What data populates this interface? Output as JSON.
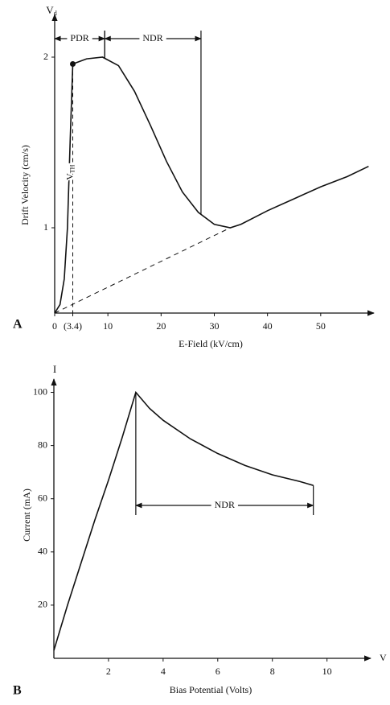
{
  "chart_data": [
    {
      "type": "line",
      "panel_label": "A",
      "x_label": "E-Field (kV/cm)",
      "y_label": "Drift Velocity (cm/s)",
      "y_symbol": "V",
      "y_symbol_sub": "d",
      "xlim": [
        0,
        60
      ],
      "ylim": [
        0.5,
        2.25
      ],
      "xticks": [
        0,
        {
          "value": 3.4,
          "label": "(3.4)"
        },
        10,
        20,
        30,
        40,
        50
      ],
      "yticks": [
        1,
        2
      ],
      "x": [
        0,
        1,
        1.8,
        2.4,
        2.9,
        3.4,
        6,
        9,
        12,
        15,
        18,
        21,
        24,
        27,
        30,
        33,
        35,
        40,
        45,
        50,
        55,
        59
      ],
      "series": [
        {
          "color": "#111111",
          "values": [
            0.5,
            0.55,
            0.7,
            1.0,
            1.5,
            1.96,
            1.99,
            2.0,
            1.95,
            1.8,
            1.6,
            1.39,
            1.21,
            1.09,
            1.02,
            1.0,
            1.02,
            1.1,
            1.17,
            1.24,
            1.3,
            1.36
          ]
        }
      ],
      "reference_line": {
        "x": [
          0,
          33
        ],
        "values": [
          0.5,
          1.0
        ]
      },
      "threshold": {
        "x": 3.4,
        "value": 1.96,
        "label": "V",
        "label_sub": "TH"
      },
      "regions": [
        {
          "label": "PDR",
          "start": 0,
          "end": 9.4
        },
        {
          "label": "NDR",
          "start": 9.4,
          "end": 27.5
        }
      ]
    },
    {
      "type": "line",
      "panel_label": "B",
      "x_label": "Bias Potential (Volts)",
      "y_label": "Current (mA)",
      "y_symbol": "I",
      "x_symbol": "V",
      "xlim": [
        0,
        11.6
      ],
      "ylim": [
        0,
        105
      ],
      "xticks": [
        2,
        4,
        6,
        8,
        10
      ],
      "yticks": [
        20,
        40,
        60,
        80,
        100
      ],
      "x": [
        0,
        0.5,
        1,
        1.5,
        2,
        2.5,
        3,
        3.5,
        4,
        5,
        6,
        7,
        8,
        9,
        9.5
      ],
      "series": [
        {
          "color": "#111111",
          "values": [
            3,
            20,
            36,
            52,
            67,
            83,
            100,
            94,
            89.5,
            82.5,
            77,
            72.5,
            69,
            66.5,
            65
          ]
        }
      ],
      "regions": [
        {
          "label": "NDR",
          "start": 3,
          "end": 9.5
        }
      ]
    }
  ]
}
